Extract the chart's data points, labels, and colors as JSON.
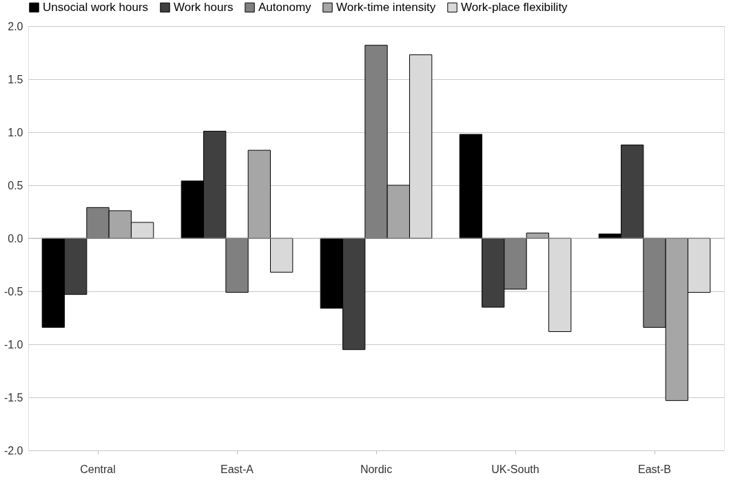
{
  "chart_data": {
    "type": "bar",
    "categories": [
      "Central",
      "East-A",
      "Nordic",
      "UK-South",
      "East-B"
    ],
    "series": [
      {
        "name": "Unsocial work hours",
        "color": "#000000",
        "values": [
          -0.84,
          0.54,
          -0.66,
          0.98,
          0.04
        ]
      },
      {
        "name": "Work hours",
        "color": "#404040",
        "values": [
          -0.53,
          1.01,
          -1.05,
          -0.65,
          0.88
        ]
      },
      {
        "name": "Autonomy",
        "color": "#808080",
        "values": [
          0.29,
          -0.51,
          1.82,
          -0.48,
          -0.84
        ]
      },
      {
        "name": "Work-time intensity",
        "color": "#a6a6a6",
        "values": [
          0.26,
          0.83,
          0.5,
          0.05,
          -1.53
        ]
      },
      {
        "name": "Work-place flexibility",
        "color": "#d9d9d9",
        "values": [
          0.15,
          -0.32,
          1.73,
          -0.88,
          -0.51
        ]
      }
    ],
    "ylim": [
      -2.0,
      2.0
    ],
    "yticks": [
      {
        "value": -2,
        "label": "-2.0"
      },
      {
        "value": -1.5,
        "label": "-1.5"
      },
      {
        "value": -1,
        "label": "-1.0"
      },
      {
        "value": -0.5,
        "label": "-0.5"
      },
      {
        "value": 0,
        "label": "0.0"
      },
      {
        "value": 0.5,
        "label": "0.5"
      },
      {
        "value": 1,
        "label": "1.0"
      },
      {
        "value": 1.5,
        "label": "1.5"
      },
      {
        "value": 2,
        "label": "2.0"
      }
    ],
    "grid": "y",
    "legend": "top"
  }
}
